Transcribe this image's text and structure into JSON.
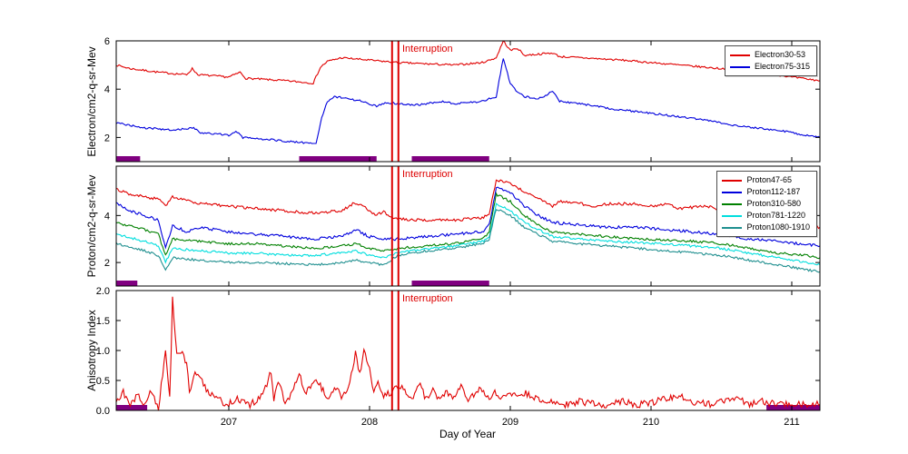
{
  "figure": {
    "xlabel": "Day of Year",
    "interruption_label": "Interruption",
    "colors": {
      "frame": "#000000",
      "interruption_line": "#dd0000",
      "gap_bar": "#800080",
      "background": "#ffffff"
    }
  },
  "chart_data": [
    {
      "type": "line",
      "ylabel": "Electron/cm2-q-sr-Mev",
      "xlim": [
        206.2,
        211.2
      ],
      "ylim": [
        1,
        6
      ],
      "yticks": [
        {
          "v": 2,
          "label": "2"
        },
        {
          "v": 4,
          "label": "4"
        },
        {
          "v": 6,
          "label": "6"
        }
      ],
      "xticks": [
        {
          "v": 207,
          "label": "207"
        },
        {
          "v": 208,
          "label": "208"
        },
        {
          "v": 209,
          "label": "209"
        },
        {
          "v": 210,
          "label": "210"
        },
        {
          "v": 211,
          "label": "211"
        }
      ],
      "show_xtick_labels": false,
      "grid": false,
      "legend": true,
      "legend_position": "upper right",
      "interruption_x": [
        208.16,
        208.205
      ],
      "gap_bars": [
        [
          206.2,
          206.37
        ],
        [
          207.5,
          208.05
        ],
        [
          208.3,
          208.85
        ]
      ],
      "series": [
        {
          "name": "Electron30-53",
          "color": "#e00000",
          "noise": 0.04,
          "x": [
            206.2,
            206.3,
            206.5,
            206.7,
            206.74,
            206.78,
            207.0,
            207.08,
            207.12,
            207.4,
            207.6,
            207.65,
            207.7,
            207.8,
            207.9,
            208.0,
            208.1,
            208.2,
            208.4,
            208.6,
            208.8,
            208.9,
            208.95,
            209.0,
            209.05,
            209.1,
            209.3,
            209.35,
            209.5,
            209.8,
            210.0,
            210.2,
            210.4,
            210.5,
            210.6,
            210.7,
            210.9,
            211.0,
            211.2
          ],
          "y": [
            5.0,
            4.85,
            4.7,
            4.6,
            4.85,
            4.6,
            4.5,
            4.7,
            4.45,
            4.35,
            4.25,
            4.9,
            5.15,
            5.3,
            5.25,
            5.2,
            5.15,
            5.1,
            5.05,
            5.0,
            5.1,
            5.3,
            6.0,
            5.6,
            5.7,
            5.4,
            5.5,
            5.35,
            5.3,
            5.2,
            5.1,
            5.0,
            4.9,
            4.85,
            4.9,
            4.75,
            4.6,
            4.5,
            4.35
          ]
        },
        {
          "name": "Electron75-315",
          "color": "#0000dd",
          "noise": 0.04,
          "x": [
            206.2,
            206.4,
            206.6,
            206.75,
            206.8,
            207.0,
            207.05,
            207.1,
            207.3,
            207.5,
            207.62,
            207.66,
            207.7,
            207.75,
            207.85,
            207.95,
            208.05,
            208.12,
            208.2,
            208.35,
            208.5,
            208.6,
            208.8,
            208.9,
            208.95,
            209.0,
            209.05,
            209.1,
            209.2,
            209.3,
            209.35,
            209.5,
            209.7,
            210.0,
            210.3,
            210.6,
            210.9,
            211.0,
            211.2
          ],
          "y": [
            2.6,
            2.4,
            2.3,
            2.4,
            2.2,
            2.1,
            2.25,
            2.0,
            1.9,
            1.8,
            1.75,
            2.8,
            3.5,
            3.7,
            3.6,
            3.5,
            3.3,
            3.45,
            3.4,
            3.35,
            3.5,
            3.4,
            3.5,
            3.7,
            5.3,
            4.2,
            3.9,
            3.7,
            3.6,
            3.9,
            3.5,
            3.4,
            3.2,
            3.0,
            2.8,
            2.5,
            2.3,
            2.2,
            2.0
          ]
        }
      ]
    },
    {
      "type": "line",
      "ylabel": "Proton/cm2-q-sr-Mev",
      "xlim": [
        206.2,
        211.2
      ],
      "ylim": [
        1,
        6.1
      ],
      "yticks": [
        {
          "v": 2,
          "label": "2"
        },
        {
          "v": 4,
          "label": "4"
        }
      ],
      "xticks": [
        {
          "v": 207,
          "label": "207"
        },
        {
          "v": 208,
          "label": "208"
        },
        {
          "v": 209,
          "label": "209"
        },
        {
          "v": 210,
          "label": "210"
        },
        {
          "v": 211,
          "label": "211"
        }
      ],
      "show_xtick_labels": false,
      "grid": false,
      "legend": true,
      "legend_position": "upper right",
      "interruption_x": [
        208.16,
        208.205
      ],
      "gap_bars": [
        [
          206.2,
          206.35
        ],
        [
          208.3,
          208.85
        ]
      ],
      "series": [
        {
          "name": "Proton47-65",
          "color": "#e00000",
          "noise": 0.06,
          "x": [
            206.2,
            206.3,
            206.5,
            206.55,
            206.6,
            206.8,
            207.0,
            207.2,
            207.4,
            207.6,
            207.8,
            207.88,
            207.95,
            208.05,
            208.1,
            208.15,
            208.2,
            208.4,
            208.6,
            208.8,
            208.85,
            208.9,
            209.0,
            209.1,
            209.2,
            209.3,
            209.35,
            209.5,
            209.6,
            209.7,
            209.9,
            210.0,
            210.1,
            210.2,
            210.4,
            210.5,
            210.7,
            210.9,
            211.0,
            211.2
          ],
          "y": [
            5.1,
            4.9,
            4.7,
            4.4,
            4.8,
            4.5,
            4.4,
            4.3,
            4.2,
            4.1,
            4.2,
            4.5,
            4.4,
            4.0,
            4.2,
            3.9,
            3.85,
            3.8,
            3.8,
            3.9,
            4.1,
            5.5,
            5.4,
            5.0,
            4.7,
            4.4,
            4.6,
            4.5,
            4.4,
            4.5,
            4.5,
            4.4,
            4.5,
            4.3,
            4.4,
            4.2,
            4.0,
            3.8,
            3.7,
            3.5
          ]
        },
        {
          "name": "Proton112-187",
          "color": "#0000dd",
          "noise": 0.06,
          "x": [
            206.2,
            206.3,
            206.5,
            206.55,
            206.6,
            206.7,
            206.8,
            207.0,
            207.2,
            207.4,
            207.6,
            207.8,
            207.9,
            208.0,
            208.1,
            208.2,
            208.4,
            208.6,
            208.8,
            208.85,
            208.9,
            209.0,
            209.1,
            209.2,
            209.3,
            209.5,
            209.7,
            209.9,
            210.1,
            210.3,
            210.5,
            210.7,
            210.9,
            211.2
          ],
          "y": [
            4.5,
            4.2,
            3.8,
            2.6,
            3.6,
            3.3,
            3.5,
            3.3,
            3.2,
            3.1,
            3.0,
            3.1,
            3.4,
            3.1,
            3.0,
            3.0,
            3.1,
            3.2,
            3.3,
            3.6,
            5.2,
            5.0,
            4.4,
            4.0,
            3.7,
            3.6,
            3.5,
            3.5,
            3.4,
            3.3,
            3.2,
            3.0,
            2.9,
            2.7
          ]
        },
        {
          "name": "Proton310-580",
          "color": "#008000",
          "noise": 0.05,
          "x": [
            206.2,
            206.4,
            206.5,
            206.55,
            206.6,
            206.8,
            207.0,
            207.2,
            207.4,
            207.6,
            207.8,
            207.9,
            208.0,
            208.1,
            208.2,
            208.4,
            208.6,
            208.8,
            208.85,
            208.9,
            209.0,
            209.1,
            209.2,
            209.3,
            209.5,
            209.7,
            209.9,
            210.1,
            210.3,
            210.5,
            210.7,
            210.9,
            211.1,
            211.2
          ],
          "y": [
            3.7,
            3.4,
            3.2,
            2.3,
            3.0,
            2.9,
            2.8,
            2.8,
            2.7,
            2.6,
            2.7,
            2.8,
            2.6,
            2.5,
            2.6,
            2.7,
            2.8,
            3.0,
            3.3,
            4.9,
            4.6,
            4.0,
            3.6,
            3.3,
            3.2,
            3.1,
            3.0,
            2.95,
            2.9,
            2.8,
            2.6,
            2.4,
            2.3,
            2.2
          ]
        },
        {
          "name": "Proton781-1220",
          "color": "#00dede",
          "noise": 0.05,
          "x": [
            206.2,
            206.4,
            206.5,
            206.55,
            206.6,
            206.8,
            207.0,
            207.2,
            207.4,
            207.6,
            207.8,
            207.9,
            208.0,
            208.1,
            208.2,
            208.4,
            208.6,
            208.8,
            208.85,
            208.9,
            209.0,
            209.1,
            209.2,
            209.3,
            209.5,
            209.7,
            209.9,
            210.1,
            210.3,
            210.5,
            210.7,
            210.9,
            211.1,
            211.2
          ],
          "y": [
            3.2,
            2.9,
            2.7,
            2.0,
            2.6,
            2.5,
            2.4,
            2.4,
            2.3,
            2.3,
            2.4,
            2.5,
            2.3,
            2.2,
            2.4,
            2.6,
            2.7,
            2.9,
            3.1,
            4.5,
            4.2,
            3.7,
            3.4,
            3.1,
            3.0,
            2.9,
            2.85,
            2.8,
            2.7,
            2.6,
            2.4,
            2.2,
            2.0,
            1.9
          ]
        },
        {
          "name": "Proton1080-1910",
          "color": "#1f8f8f",
          "noise": 0.05,
          "x": [
            206.2,
            206.4,
            206.5,
            206.55,
            206.6,
            206.8,
            207.0,
            207.2,
            207.4,
            207.6,
            207.8,
            207.9,
            208.0,
            208.1,
            208.2,
            208.4,
            208.6,
            208.8,
            208.85,
            208.9,
            209.0,
            209.1,
            209.2,
            209.3,
            209.5,
            209.7,
            209.9,
            210.1,
            210.3,
            210.5,
            210.7,
            210.9,
            211.1,
            211.2
          ],
          "y": [
            2.8,
            2.5,
            2.3,
            1.7,
            2.2,
            2.1,
            2.0,
            2.0,
            1.95,
            1.9,
            2.0,
            2.1,
            2.0,
            1.9,
            2.3,
            2.5,
            2.6,
            2.8,
            3.0,
            4.3,
            4.0,
            3.5,
            3.2,
            2.9,
            2.8,
            2.7,
            2.6,
            2.5,
            2.4,
            2.3,
            2.1,
            1.9,
            1.7,
            1.6
          ]
        }
      ]
    },
    {
      "type": "line",
      "ylabel": "Anisotropy Index",
      "xlim": [
        206.2,
        211.2
      ],
      "ylim": [
        0,
        2
      ],
      "yticks": [
        {
          "v": 0,
          "label": "0.0"
        },
        {
          "v": 0.5,
          "label": "0.5"
        },
        {
          "v": 1,
          "label": "1.0"
        },
        {
          "v": 1.5,
          "label": "1.5"
        },
        {
          "v": 2,
          "label": "2.0"
        }
      ],
      "xticks": [
        {
          "v": 207,
          "label": "207"
        },
        {
          "v": 208,
          "label": "208"
        },
        {
          "v": 209,
          "label": "209"
        },
        {
          "v": 210,
          "label": "210"
        },
        {
          "v": 211,
          "label": "211"
        }
      ],
      "show_xtick_labels": true,
      "grid": false,
      "legend": false,
      "interruption_x": [
        208.16,
        208.205
      ],
      "gap_bars": [
        [
          206.2,
          206.42
        ],
        [
          210.82,
          211.2
        ]
      ],
      "series": [
        {
          "name": "AnisotropyIndex",
          "color": "#e00000",
          "noise": 0.06,
          "x": [
            206.2,
            206.25,
            206.3,
            206.35,
            206.4,
            206.45,
            206.5,
            206.55,
            206.58,
            206.6,
            206.63,
            206.66,
            206.7,
            206.72,
            206.75,
            206.8,
            206.85,
            206.9,
            206.95,
            207.0,
            207.05,
            207.1,
            207.15,
            207.2,
            207.25,
            207.3,
            207.32,
            207.35,
            207.4,
            207.45,
            207.5,
            207.55,
            207.6,
            207.65,
            207.7,
            207.75,
            207.8,
            207.85,
            207.9,
            207.93,
            207.96,
            208.0,
            208.03,
            208.06,
            208.1,
            208.15,
            208.2,
            208.25,
            208.3,
            208.35,
            208.4,
            208.45,
            208.5,
            208.55,
            208.6,
            208.65,
            208.7,
            208.75,
            208.8,
            208.85,
            208.9,
            208.95,
            209.0,
            209.1,
            209.2,
            209.3,
            209.4,
            209.5,
            209.6,
            209.7,
            209.8,
            209.9,
            210.0,
            210.1,
            210.2,
            210.3,
            210.4,
            210.5,
            210.6,
            210.7,
            210.8,
            210.9,
            211.0,
            211.1,
            211.2
          ],
          "y": [
            0.15,
            0.3,
            0.1,
            0.25,
            0.1,
            0.35,
            0.05,
            1.0,
            0.2,
            1.85,
            0.9,
            1.0,
            0.8,
            0.3,
            0.6,
            0.55,
            0.3,
            0.2,
            0.15,
            0.1,
            0.2,
            0.15,
            0.1,
            0.15,
            0.3,
            0.65,
            0.2,
            0.5,
            0.15,
            0.3,
            0.6,
            0.3,
            0.5,
            0.4,
            0.2,
            0.4,
            0.25,
            0.4,
            0.95,
            0.6,
            1.0,
            0.7,
            0.3,
            0.5,
            0.25,
            0.3,
            0.4,
            0.35,
            0.2,
            0.45,
            0.2,
            0.35,
            0.15,
            0.3,
            0.2,
            0.4,
            0.2,
            0.3,
            0.35,
            0.2,
            0.3,
            0.2,
            0.25,
            0.3,
            0.2,
            0.15,
            0.1,
            0.15,
            0.1,
            0.1,
            0.15,
            0.1,
            0.12,
            0.2,
            0.25,
            0.15,
            0.1,
            0.15,
            0.2,
            0.1,
            0.15,
            0.1,
            0.12,
            0.1,
            0.1
          ]
        }
      ]
    }
  ]
}
